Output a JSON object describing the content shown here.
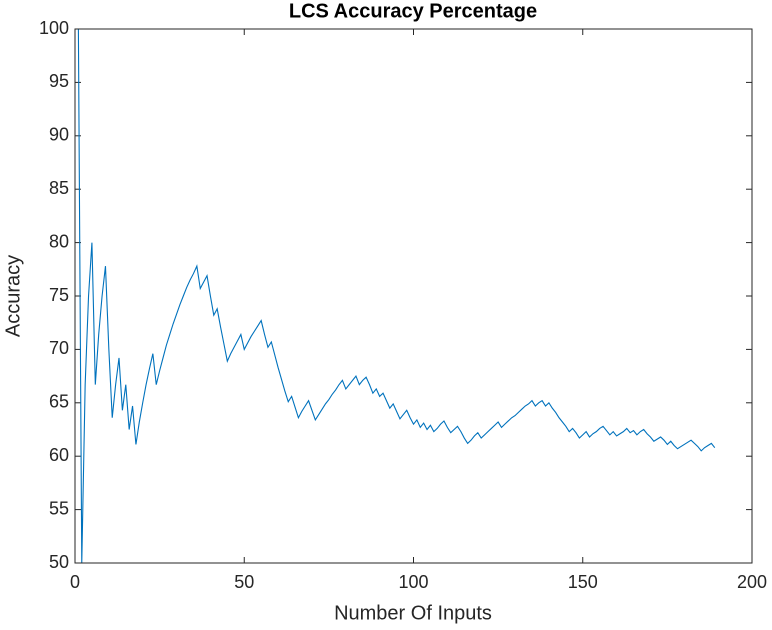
{
  "chart_data": {
    "type": "line",
    "title": "LCS Accuracy Percentage",
    "x_label": "Number Of Inputs",
    "y_label": "Accuracy",
    "xlim": [
      0,
      200
    ],
    "xticks": [
      0,
      50,
      100,
      150,
      200
    ],
    "ylim": [
      50,
      100
    ],
    "yticks": [
      50,
      55,
      60,
      65,
      70,
      75,
      80,
      85,
      90,
      95,
      100
    ],
    "grid": false,
    "x": [
      1,
      2,
      3,
      4,
      5,
      6,
      7,
      8,
      9,
      10,
      11,
      12,
      13,
      14,
      15,
      16,
      17,
      18,
      19,
      20,
      21,
      22,
      23,
      24,
      25,
      26,
      27,
      28,
      29,
      30,
      31,
      32,
      33,
      34,
      35,
      36,
      37,
      38,
      39,
      40,
      41,
      42,
      43,
      44,
      45,
      46,
      47,
      48,
      49,
      50,
      51,
      52,
      53,
      54,
      55,
      56,
      57,
      58,
      59,
      60,
      61,
      62,
      63,
      64,
      65,
      66,
      67,
      68,
      69,
      70,
      71,
      72,
      73,
      74,
      75,
      76,
      77,
      78,
      79,
      80,
      81,
      82,
      83,
      84,
      85,
      86,
      87,
      88,
      89,
      90,
      91,
      92,
      93,
      94,
      95,
      96,
      97,
      98,
      99,
      100,
      101,
      102,
      103,
      104,
      105,
      106,
      107,
      108,
      109,
      110,
      111,
      112,
      113,
      114,
      115,
      116,
      117,
      118,
      119,
      120,
      121,
      122,
      123,
      124,
      125,
      126,
      127,
      128,
      129,
      130,
      131,
      132,
      133,
      134,
      135,
      136,
      137,
      138,
      139,
      140,
      141,
      142,
      143,
      144,
      145,
      146,
      147,
      148,
      149,
      150,
      151,
      152,
      153,
      154,
      155,
      156,
      157,
      158,
      159,
      160,
      161,
      162,
      163,
      164,
      165,
      166,
      167,
      168,
      169,
      170,
      171,
      172,
      173,
      174,
      175,
      176,
      177,
      178,
      179,
      180,
      181,
      182,
      183,
      184,
      185,
      186,
      187,
      188,
      189
    ],
    "series": [
      {
        "color": "#0072bd",
        "values": [
          100,
          50,
          66.7,
          75,
          80,
          66.7,
          71.4,
          75,
          77.8,
          70,
          63.6,
          66.7,
          69.2,
          64.3,
          66.7,
          62.5,
          64.7,
          61.1,
          63.2,
          65,
          66.7,
          68.2,
          69.6,
          66.7,
          68,
          69.2,
          70.4,
          71.4,
          72.4,
          73.3,
          74.2,
          75,
          75.8,
          76.5,
          77.1,
          77.8,
          75.7,
          76.3,
          76.9,
          75,
          73.2,
          73.8,
          72.1,
          70.5,
          68.9,
          69.6,
          70.2,
          70.8,
          71.4,
          70,
          70.6,
          71.2,
          71.7,
          72.2,
          72.7,
          71.4,
          70.2,
          70.7,
          69.5,
          68.3,
          67.2,
          66.1,
          65.1,
          65.6,
          64.6,
          63.6,
          64.2,
          64.7,
          65.2,
          64.3,
          63.4,
          63.9,
          64.4,
          64.9,
          65.3,
          65.8,
          66.2,
          66.7,
          67.1,
          66.3,
          66.7,
          67.1,
          67.5,
          66.7,
          67.1,
          67.4,
          66.7,
          65.9,
          66.3,
          65.6,
          65.9,
          65.2,
          64.5,
          64.9,
          64.2,
          63.5,
          63.9,
          64.3,
          63.6,
          63,
          63.4,
          62.7,
          63.1,
          62.5,
          62.9,
          62.3,
          62.6,
          63,
          63.3,
          62.7,
          62.2,
          62.5,
          62.8,
          62.3,
          61.7,
          61.2,
          61.5,
          61.9,
          62.2,
          61.7,
          62,
          62.3,
          62.6,
          62.9,
          63.2,
          62.7,
          63,
          63.3,
          63.6,
          63.8,
          64.1,
          64.4,
          64.7,
          64.9,
          65.2,
          64.7,
          65,
          65.2,
          64.7,
          65,
          64.5,
          64.1,
          63.6,
          63.2,
          62.8,
          62.3,
          62.6,
          62.2,
          61.7,
          62,
          62.3,
          61.8,
          62.1,
          62.3,
          62.6,
          62.8,
          62.4,
          62,
          62.3,
          61.9,
          62.1,
          62.3,
          62.6,
          62.2,
          62.4,
          62,
          62.3,
          62.5,
          62.1,
          61.8,
          61.4,
          61.6,
          61.8,
          61.5,
          61.1,
          61.4,
          61,
          60.7,
          60.9,
          61.1,
          61.3,
          61.5,
          61.2,
          60.9,
          60.5,
          60.8,
          61,
          61.2,
          60.8
        ]
      }
    ]
  }
}
